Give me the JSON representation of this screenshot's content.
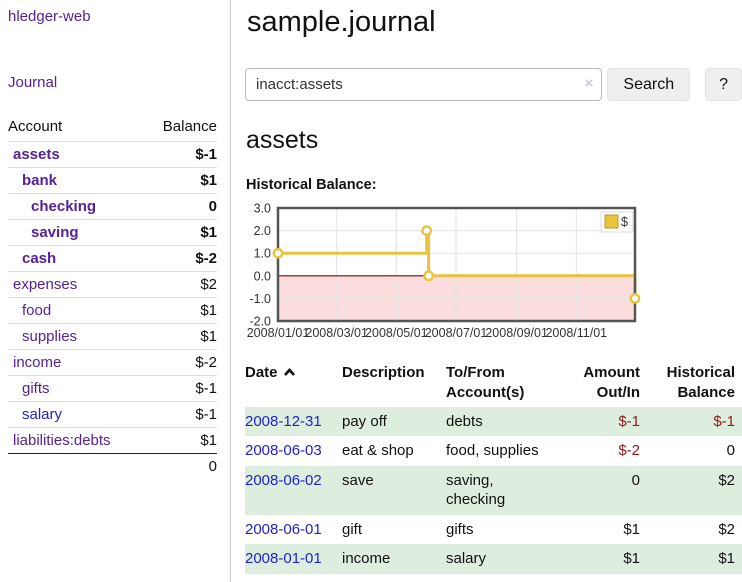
{
  "colors": {
    "accent_purple": "#552299",
    "link_blue": "#2222cc",
    "negative_strong": "#8f1a1a",
    "negative_muted": "#b36b6b",
    "series_gold": "#E8C33D",
    "row_stripe_green": "#deeede",
    "negative_region_pink": "#fbdddd",
    "zero_line_red": "#8b0000"
  },
  "sidebar": {
    "brand": "hledger-web",
    "journal_link": "Journal",
    "accounts": {
      "col_account": "Account",
      "col_balance": "Balance",
      "rows": [
        {
          "name": "assets",
          "balance": "$-1",
          "level": 0,
          "bold": true,
          "bal": "neg"
        },
        {
          "name": "bank",
          "balance": "$1",
          "level": 1,
          "bold": true,
          "bal": ""
        },
        {
          "name": "checking",
          "balance": "0",
          "level": 2,
          "bold": true,
          "bal": ""
        },
        {
          "name": "saving",
          "balance": "$1",
          "level": 2,
          "bold": true,
          "bal": ""
        },
        {
          "name": "cash",
          "balance": "$-2",
          "level": 1,
          "bold": true,
          "bal": "neg"
        },
        {
          "name": "expenses",
          "balance": "$2",
          "level": 0,
          "bold": false,
          "bal": ""
        },
        {
          "name": "food",
          "balance": "$1",
          "level": 1,
          "bold": false,
          "bal": ""
        },
        {
          "name": "supplies",
          "balance": "$1",
          "level": 1,
          "bold": false,
          "bal": ""
        },
        {
          "name": "income",
          "balance": "$-2",
          "level": 0,
          "bold": false,
          "bal": "negmuted"
        },
        {
          "name": "gifts",
          "balance": "$-1",
          "level": 1,
          "bold": false,
          "bal": "negmuted"
        },
        {
          "name": "salary",
          "balance": "$-1",
          "level": 1,
          "bold": false,
          "bal": "negmuted",
          "link": "blue"
        },
        {
          "name": "liabilities:debts",
          "balance": "$1",
          "level": 0,
          "bold": false,
          "bal": ""
        }
      ],
      "total": "0"
    }
  },
  "main": {
    "title": "sample.journal",
    "search": {
      "value": "inacct:assets",
      "clear_icon": "×",
      "search_button": "Search",
      "help_button": "?"
    },
    "heading": "assets",
    "chart_title": "Historical Balance:",
    "register": {
      "headers": {
        "date": "Date",
        "sort_icon": "chevron-up",
        "description": "Description",
        "accounts": "To/From Account(s)",
        "amount": "Amount Out/In",
        "balance": "Historical Balance"
      },
      "rows": [
        {
          "date": "2008-12-31",
          "description": "pay off",
          "accounts": "debts",
          "amount": "$-1",
          "amount_neg": true,
          "balance": "$-1",
          "balance_neg": true,
          "wrap": false
        },
        {
          "date": "2008-06-03",
          "description": "eat & shop",
          "accounts": "food, supplies",
          "amount": "$-2",
          "amount_neg": true,
          "balance": "0",
          "balance_neg": false,
          "wrap": false
        },
        {
          "date": "2008-06-02",
          "description": "save",
          "accounts": "saving, checking",
          "amount": "0",
          "amount_neg": false,
          "balance": "$2",
          "balance_neg": false,
          "wrap": true
        },
        {
          "date": "2008-06-01",
          "description": "gift",
          "accounts": "gifts",
          "amount": "$1",
          "amount_neg": false,
          "balance": "$2",
          "balance_neg": false,
          "wrap": false
        },
        {
          "date": "2008-01-01",
          "description": "income",
          "accounts": "salary",
          "amount": "$1",
          "amount_neg": false,
          "balance": "$1",
          "balance_neg": false,
          "wrap": false
        }
      ]
    }
  },
  "chart_data": {
    "type": "line",
    "step": true,
    "title": "Historical Balance",
    "series": [
      {
        "name": "$",
        "color": "#E8C33D",
        "points": [
          [
            "2008-01-01",
            1
          ],
          [
            "2008-06-01",
            2
          ],
          [
            "2008-06-03",
            0
          ],
          [
            "2008-12-31",
            -1
          ]
        ]
      }
    ],
    "x_range": [
      "2008-01-01",
      "2008-12-31"
    ],
    "x_ticks": [
      "2008/01/01",
      "2008/03/01",
      "2008/05/01",
      "2008/07/01",
      "2008/09/01",
      "2008/11/01"
    ],
    "y_ticks": [
      3.0,
      2.0,
      1.0,
      0.0,
      -1.0,
      -2.0
    ],
    "ylim": [
      -2,
      3
    ],
    "grid": true,
    "legend_position": "top-right",
    "negative_region_color": "#fbdddd",
    "zero_line_color": "#8b0000"
  }
}
